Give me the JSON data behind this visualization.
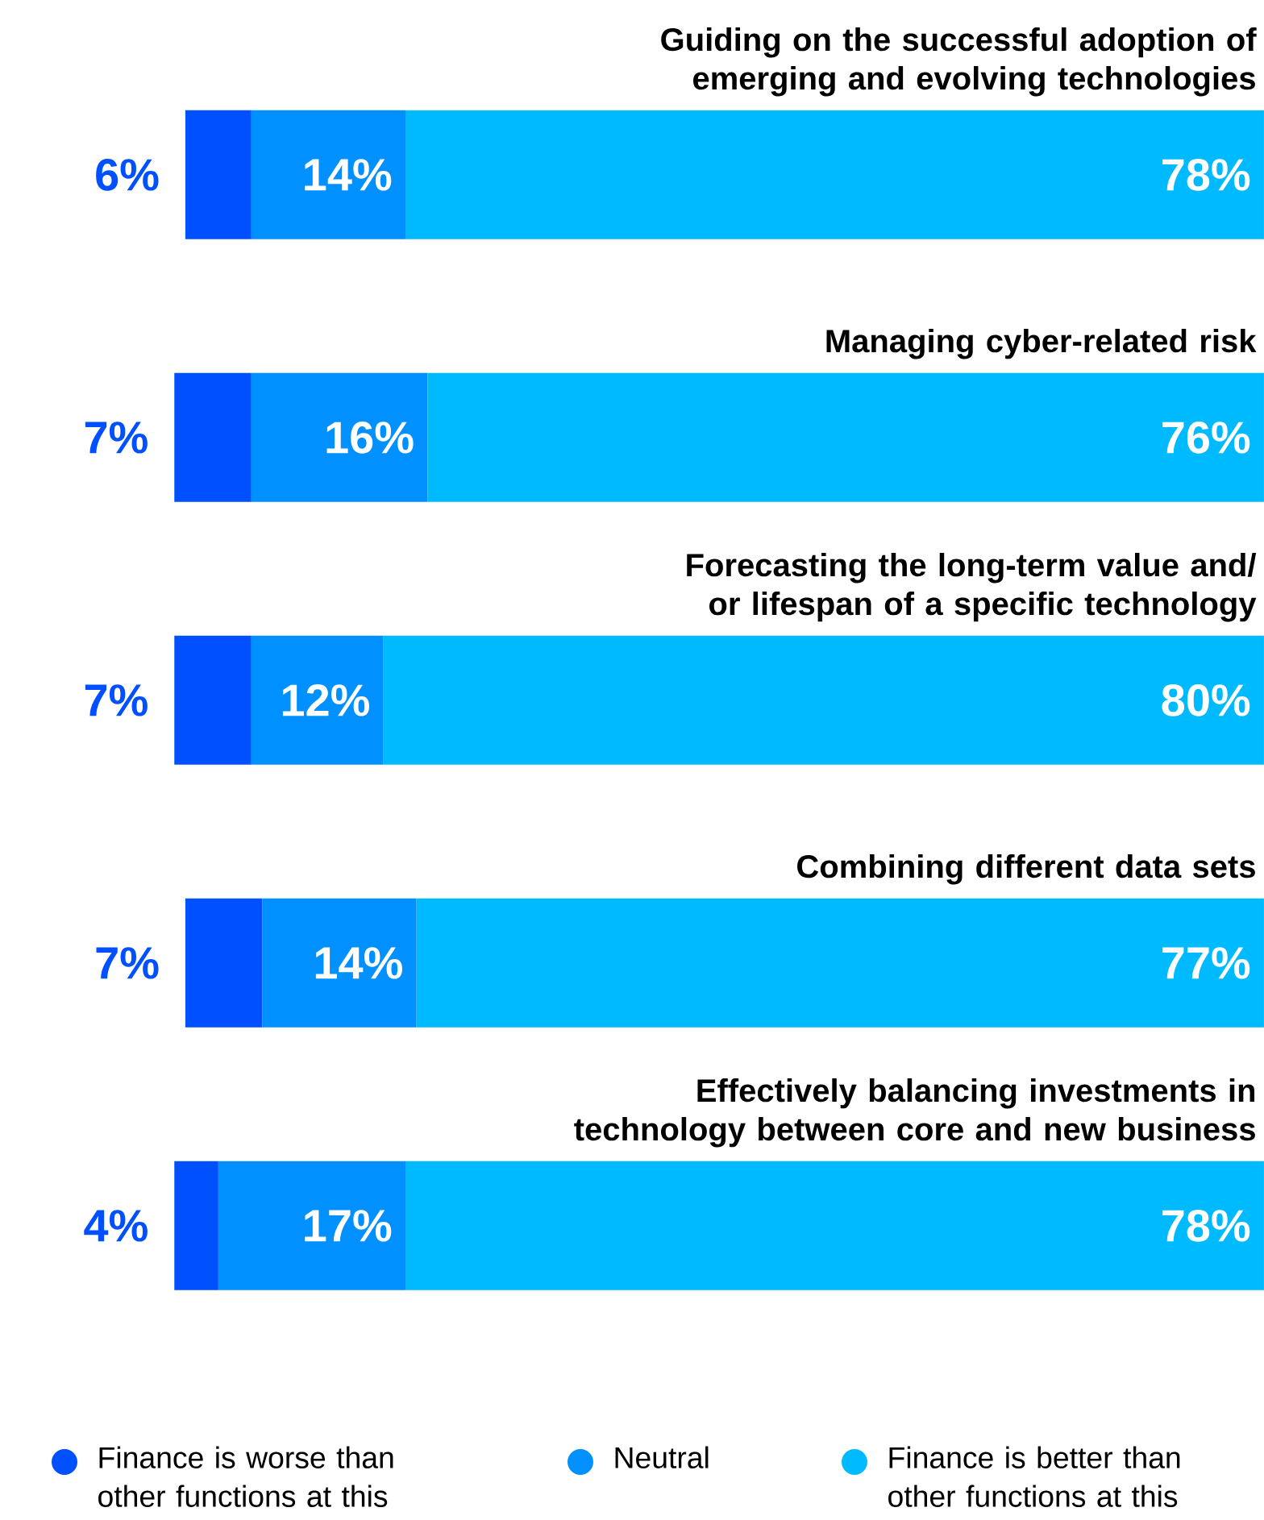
{
  "chart_data": {
    "type": "bar",
    "orientation": "horizontal",
    "stacked": true,
    "legend": "bottom",
    "categories": [
      "Guiding on the successful adoption of emerging and evolving technologies",
      "Managing cyber-related risk",
      "Forecasting the long-term value and/ or lifespan of a specific technology",
      "Combining different data sets",
      "Effectively balancing investments in technology between core and new business"
    ],
    "series": [
      {
        "name": "Finance is better than other functions at this",
        "color": "#00baff",
        "values": [
          78,
          76,
          80,
          77,
          78
        ],
        "value_labels": [
          "78%",
          "76%",
          "80%",
          "77%",
          "78%"
        ]
      },
      {
        "name": "Neutral",
        "color": "#0090ff",
        "values": [
          14,
          16,
          12,
          14,
          17
        ],
        "value_labels": [
          "14%",
          "16%",
          "12%",
          "14%",
          "17%"
        ]
      },
      {
        "name": "Finance is worse than other functions at this",
        "color": "#0050ff",
        "values": [
          6,
          7,
          7,
          7,
          4
        ],
        "value_labels": [
          "6%",
          "7%",
          "7%",
          "7%",
          "4%"
        ]
      }
    ]
  }
}
